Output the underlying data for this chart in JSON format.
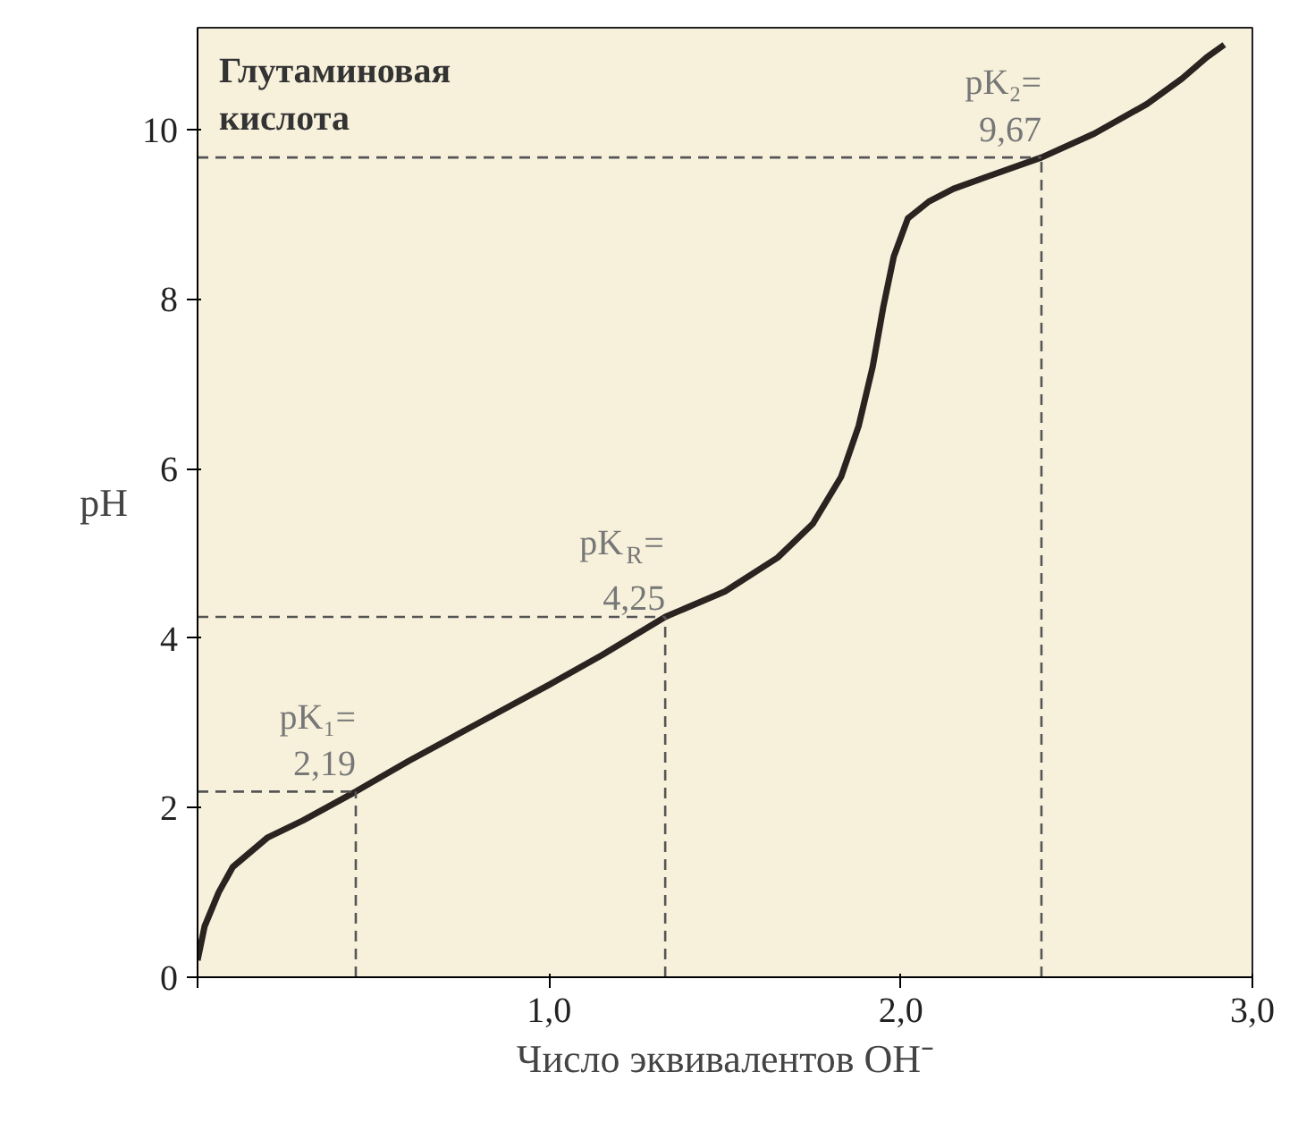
{
  "chart_data": {
    "type": "line",
    "xlabel": "Число эквивалентов OH⁻",
    "ylabel": "pH",
    "x": [
      0,
      0.02,
      0.06,
      0.1,
      0.2,
      0.3,
      0.45,
      0.6,
      0.8,
      1.0,
      1.15,
      1.33,
      1.5,
      1.65,
      1.75,
      1.83,
      1.88,
      1.92,
      1.95,
      1.98,
      2.02,
      2.08,
      2.15,
      2.25,
      2.4,
      2.55,
      2.7,
      2.8,
      2.87,
      2.92
    ],
    "series": [
      {
        "color": "#2a2320",
        "values": [
          0.2,
          0.6,
          1.0,
          1.3,
          1.65,
          1.85,
          2.19,
          2.55,
          3.0,
          3.45,
          3.8,
          4.25,
          4.55,
          4.95,
          5.35,
          5.9,
          6.5,
          7.2,
          7.9,
          8.5,
          8.95,
          9.15,
          9.3,
          9.45,
          9.67,
          9.95,
          10.3,
          10.6,
          10.85,
          11.0
        ]
      }
    ],
    "xlim": [
      0,
      3.0
    ],
    "ylim": [
      0,
      11.2
    ],
    "xticks": [
      {
        "value": 0,
        "label": null
      },
      {
        "value": 1.0,
        "label": "1,0"
      },
      {
        "value": 2.0,
        "label": "2,0"
      },
      {
        "value": 3.0,
        "label": "3,0"
      }
    ],
    "yticks": [
      0,
      2,
      4,
      6,
      8,
      10
    ],
    "ref_lines": [
      {
        "axis": "x",
        "value": 0.45
      },
      {
        "axis": "y",
        "value": 2.19
      },
      {
        "axis": "x",
        "value": 1.33
      },
      {
        "axis": "y",
        "value": 4.25
      },
      {
        "axis": "x",
        "value": 2.4
      },
      {
        "axis": "y",
        "value": 9.67
      }
    ],
    "grid": false,
    "line_style": "solid",
    "marker": "none",
    "annotations": [
      {
        "text": "pK₁=\n2,19",
        "x": 0.45,
        "y": 2.19
      },
      {
        "text": "pK$_{R}$=\n4,25",
        "x": 1.33,
        "y": 4.25
      },
      {
        "text": "pK₂=\n9,67",
        "x": 2.4,
        "y": 9.67
      },
      "Глутаминовая\nкислота"
    ]
  }
}
